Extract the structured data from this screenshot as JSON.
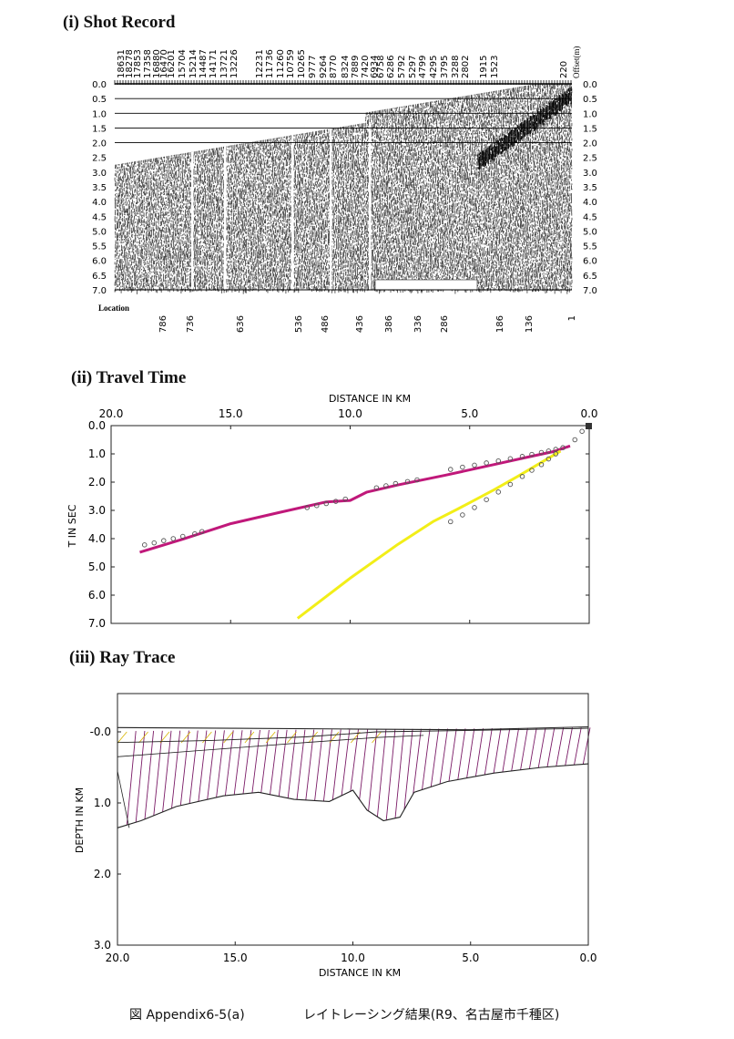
{
  "sections": {
    "shot_title": "(i) Shot Record",
    "travel_title": "(ii) Travel Time",
    "ray_title": "(iii) Ray Trace"
  },
  "shot": {
    "offset_label": "Offset(m)",
    "location_label": "Location",
    "offsets": [
      "18631",
      "18278",
      "17853",
      "17358",
      "16880",
      "16470",
      "16201",
      "15704",
      "15214",
      "14487",
      "14171",
      "13721",
      "13226",
      "12231",
      "11736",
      "11260",
      "10759",
      "10265",
      "9777",
      "9264",
      "8770",
      "8324",
      "7889",
      "7420",
      "6934",
      "6758",
      "6286",
      "5792",
      "5297",
      "4799",
      "4295",
      "3795",
      "3288",
      "2802",
      "1915",
      "1523",
      "220"
    ],
    "locations": [
      "786",
      "736",
      "636",
      "536",
      "486",
      "436",
      "386",
      "336",
      "286",
      "186",
      "136",
      "1"
    ],
    "time_ticks": [
      "0.0",
      "0.5",
      "1.0",
      "1.5",
      "2.0",
      "2.5",
      "3.0",
      "3.5",
      "4.0",
      "4.5",
      "5.0",
      "5.5",
      "6.0",
      "6.5",
      "7.0"
    ]
  },
  "travel": {
    "xlabel": "DISTANCE IN KM",
    "ylabel": "T IN SEC",
    "x_ticks": [
      "20.0",
      "15.0",
      "10.0",
      "5.0",
      "0.0"
    ],
    "y_ticks": [
      "0.0",
      "1.0",
      "2.0",
      "3.0",
      "4.0",
      "5.0",
      "6.0",
      "7.0"
    ],
    "colors": {
      "refracted": "#c0187a",
      "direct": "#f2ee18",
      "picks": "#555555"
    }
  },
  "ray": {
    "xlabel": "DISTANCE IN KM",
    "ylabel": "DEPTH IN KM",
    "x_ticks": [
      "20.0",
      "15.0",
      "10.0",
      "5.0",
      "0.0"
    ],
    "y_ticks": [
      "-0.0",
      "1.0",
      "2.0",
      "3.0"
    ],
    "colors": {
      "rays": "#7a1a66",
      "boundary": "#222222",
      "near_surface": "#d8b400"
    }
  },
  "chart_data": [
    {
      "type": "line",
      "title": "(ii) Travel Time",
      "xlabel": "DISTANCE IN KM",
      "ylabel": "T IN SEC",
      "xlim": [
        20.0,
        0.0
      ],
      "ylim": [
        0.0,
        7.0
      ],
      "series": [
        {
          "x": [
            18.8,
            17.0,
            15.0,
            13.0,
            11.0,
            10.0,
            9.3,
            8.0,
            6.0,
            4.0,
            2.5,
            1.5,
            0.8
          ],
          "y": [
            4.48,
            4.02,
            3.47,
            3.08,
            2.7,
            2.65,
            2.35,
            2.1,
            1.75,
            1.38,
            1.1,
            0.92,
            0.72
          ]
        },
        {
          "x": [
            12.2,
            10.0,
            8.0,
            6.5,
            5.5,
            4.0,
            3.0,
            2.0,
            1.2
          ],
          "y": [
            6.82,
            5.4,
            4.2,
            3.38,
            2.95,
            2.28,
            1.8,
            1.3,
            0.9
          ]
        }
      ]
    },
    {
      "type": "scatter",
      "title": "(ii) Travel Time",
      "xlabel": "DISTANCE IN KM",
      "ylabel": "T IN SEC",
      "xlim": [
        20.0,
        0.0
      ],
      "ylim": [
        0.0,
        7.0
      ],
      "series": [
        {
          "x": [
            18.6,
            18.2,
            17.8,
            17.4,
            17.0,
            16.5,
            16.2
          ],
          "y": [
            4.22,
            4.15,
            4.07,
            4.0,
            3.92,
            3.83,
            3.75
          ]
        },
        {
          "x": [
            11.8,
            11.4,
            11.0,
            10.6,
            10.2
          ],
          "y": [
            2.9,
            2.83,
            2.76,
            2.68,
            2.6
          ]
        },
        {
          "x": [
            8.9,
            8.5,
            8.1,
            7.6,
            7.2
          ],
          "y": [
            2.2,
            2.13,
            2.05,
            1.98,
            1.92
          ]
        },
        {
          "x": [
            5.8,
            5.3,
            4.8,
            4.3,
            3.8,
            3.3,
            2.8,
            2.4,
            2.0,
            1.7,
            1.4,
            1.1
          ],
          "y": [
            1.55,
            1.47,
            1.4,
            1.32,
            1.25,
            1.17,
            1.09,
            1.02,
            0.95,
            0.9,
            0.84,
            0.78
          ]
        },
        {
          "x": [
            5.8,
            5.3,
            4.8,
            4.3,
            3.8,
            3.3,
            2.8,
            2.4,
            2.0,
            1.7,
            1.4
          ],
          "y": [
            3.4,
            3.16,
            2.9,
            2.62,
            2.35,
            2.08,
            1.8,
            1.58,
            1.38,
            1.18,
            1.0
          ]
        },
        {
          "x": [
            0.6,
            0.3
          ],
          "y": [
            0.5,
            0.2
          ]
        }
      ]
    }
  ],
  "caption": {
    "figure": "図 Appendix6-5(a)",
    "description": "レイトレーシング結果(R9、名古屋市千種区)"
  }
}
